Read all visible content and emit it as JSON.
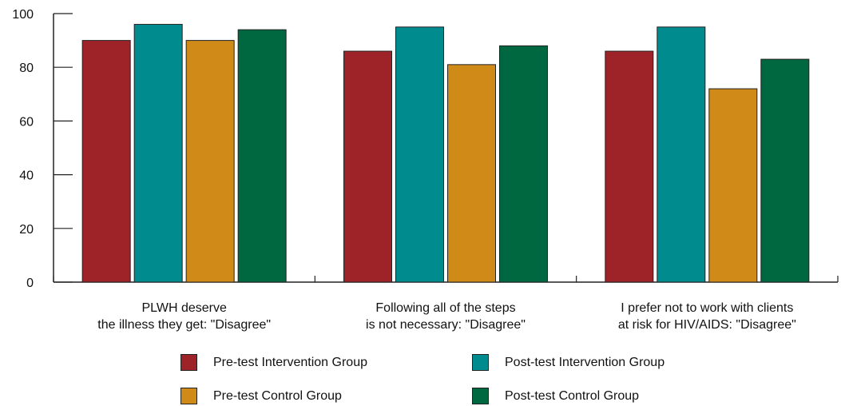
{
  "chart_data": {
    "type": "bar",
    "categories": [
      [
        "PLWH deserve",
        "the illness they get: \"Disagree\""
      ],
      [
        "Following all of the steps",
        "is not necessary: \"Disagree\""
      ],
      [
        "I prefer not to work with clients",
        "at risk for HIV/AIDS: \"Disagree\""
      ]
    ],
    "series": [
      {
        "name": "Pre-test Intervention Group",
        "color": "#9e2328",
        "values": [
          90,
          86,
          86
        ]
      },
      {
        "name": "Post-test Intervention Group",
        "color": "#008b8f",
        "values": [
          96,
          95,
          95
        ]
      },
      {
        "name": "Pre-test Control Group",
        "color": "#d08a18",
        "values": [
          90,
          81,
          72
        ]
      },
      {
        "name": "Post-test Control Group",
        "color": "#006841",
        "values": [
          94,
          88,
          83
        ]
      }
    ],
    "yticks": [
      0,
      20,
      40,
      60,
      80,
      100
    ],
    "ylim": [
      0,
      100
    ],
    "xlabel": "",
    "ylabel": "",
    "title": "",
    "grid": false,
    "legend_position": "bottom"
  }
}
